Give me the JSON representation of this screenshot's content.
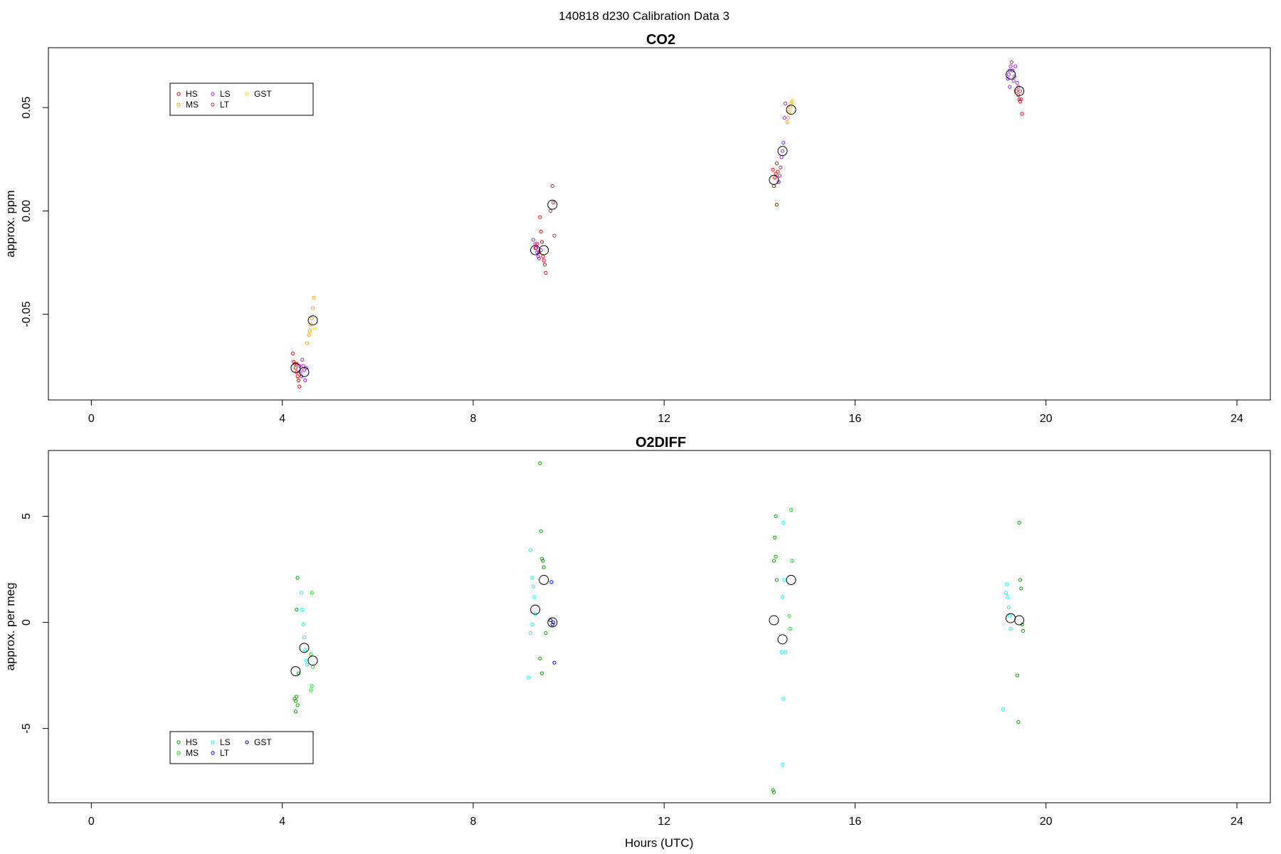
{
  "page_title": "140818   d230   Calibration Data 3",
  "chart_data": [
    {
      "type": "scatter",
      "title": "CO2",
      "xlabel": "",
      "ylabel": "approx. ppm",
      "xlim": [
        -0.9,
        24.7
      ],
      "ylim": [
        -0.0915,
        0.079
      ],
      "x_ticks": [
        0,
        4,
        8,
        12,
        16,
        20,
        24
      ],
      "y_ticks": [
        -0.05,
        0.0,
        0.05
      ],
      "y_tick_labels": [
        "-0.05",
        "0.00",
        "0.05"
      ],
      "legend": {
        "placement": "top-left",
        "entries": [
          {
            "label": "HS",
            "color": "#ff0000"
          },
          {
            "label": "MS",
            "color": "#ffa500"
          },
          {
            "label": "LS",
            "color": "#a020f0"
          },
          {
            "label": "LT",
            "color": "#b03060"
          },
          {
            "label": "GST",
            "color": "#ffd700"
          }
        ]
      },
      "series": [
        {
          "legend_index": 0,
          "points": [
            [
              4.22,
              -0.069
            ],
            [
              4.24,
              -0.073
            ],
            [
              4.26,
              -0.074
            ],
            [
              4.28,
              -0.076
            ],
            [
              4.3,
              -0.078
            ],
            [
              4.32,
              -0.08
            ],
            [
              4.34,
              -0.082
            ],
            [
              4.36,
              -0.085
            ],
            [
              4.3,
              -0.074
            ],
            [
              9.3,
              -0.018
            ],
            [
              9.34,
              -0.016
            ],
            [
              9.38,
              -0.02
            ],
            [
              9.4,
              -0.003
            ],
            [
              9.42,
              -0.01
            ],
            [
              9.44,
              -0.015
            ],
            [
              9.46,
              -0.022
            ],
            [
              9.48,
              -0.024
            ],
            [
              9.5,
              -0.026
            ],
            [
              9.52,
              -0.03
            ],
            [
              14.28,
              0.02
            ],
            [
              14.3,
              0.012
            ],
            [
              14.32,
              0.016
            ],
            [
              14.34,
              0.018
            ],
            [
              14.36,
              0.023
            ],
            [
              14.38,
              0.019
            ],
            [
              14.4,
              0.014
            ],
            [
              14.36,
              0.003
            ],
            [
              19.38,
              0.058
            ],
            [
              19.42,
              0.056
            ],
            [
              19.44,
              0.054
            ],
            [
              19.46,
              0.053
            ],
            [
              19.5,
              0.047
            ]
          ]
        },
        {
          "legend_index": 1,
          "points": [
            [
              4.52,
              -0.064
            ],
            [
              4.56,
              -0.06
            ],
            [
              4.58,
              -0.058
            ],
            [
              4.62,
              -0.052
            ],
            [
              4.64,
              -0.047
            ],
            [
              4.66,
              -0.042
            ],
            [
              4.6,
              -0.055
            ],
            [
              14.6,
              0.045
            ],
            [
              14.62,
              0.048
            ],
            [
              14.64,
              0.05
            ],
            [
              14.66,
              0.052
            ],
            [
              14.68,
              0.053
            ],
            [
              14.58,
              0.043
            ]
          ]
        },
        {
          "legend_index": 2,
          "points": [
            [
              4.36,
              -0.075
            ],
            [
              4.38,
              -0.078
            ],
            [
              4.4,
              -0.08
            ],
            [
              4.42,
              -0.072
            ],
            [
              4.44,
              -0.075
            ],
            [
              4.46,
              -0.077
            ],
            [
              4.48,
              -0.082
            ],
            [
              4.5,
              -0.076
            ],
            [
              9.26,
              -0.014
            ],
            [
              9.3,
              -0.016
            ],
            [
              9.32,
              -0.018
            ],
            [
              9.34,
              -0.02
            ],
            [
              9.36,
              -0.022
            ],
            [
              9.38,
              -0.023
            ],
            [
              9.42,
              -0.019
            ],
            [
              14.4,
              0.014
            ],
            [
              14.42,
              0.017
            ],
            [
              14.44,
              0.021
            ],
            [
              14.46,
              0.026
            ],
            [
              14.48,
              0.029
            ],
            [
              14.5,
              0.033
            ],
            [
              14.52,
              0.045
            ],
            [
              14.54,
              0.052
            ],
            [
              19.2,
              0.064
            ],
            [
              19.22,
              0.066
            ],
            [
              19.24,
              0.068
            ],
            [
              19.26,
              0.07
            ],
            [
              19.28,
              0.072
            ],
            [
              19.3,
              0.068
            ],
            [
              19.32,
              0.063
            ],
            [
              19.34,
              0.065
            ],
            [
              19.36,
              0.07
            ],
            [
              19.24,
              0.06
            ],
            [
              19.4,
              0.062
            ]
          ]
        },
        {
          "legend_index": 3,
          "points": [
            [
              9.62,
              0.0
            ],
            [
              9.66,
              0.012
            ],
            [
              9.7,
              -0.012
            ],
            [
              9.68,
              0.004
            ],
            [
              19.42,
              0.06
            ],
            [
              19.46,
              0.058
            ],
            [
              19.48,
              0.054
            ]
          ]
        },
        {
          "legend_index": 4,
          "points": [
            [
              4.68,
              -0.057
            ],
            [
              14.66,
              0.052
            ]
          ]
        },
        {
          "legend_index": -1,
          "marker": "mean",
          "points": [
            [
              4.28,
              -0.076
            ],
            [
              4.46,
              -0.078
            ],
            [
              4.64,
              -0.053
            ],
            [
              9.3,
              -0.019
            ],
            [
              9.48,
              -0.019
            ],
            [
              9.66,
              0.003
            ],
            [
              14.3,
              0.015
            ],
            [
              14.48,
              0.029
            ],
            [
              14.66,
              0.049
            ],
            [
              19.26,
              0.066
            ],
            [
              19.44,
              0.058
            ]
          ]
        }
      ]
    },
    {
      "type": "scatter",
      "title": "O2DIFF",
      "xlabel": "Hours (UTC)",
      "ylabel": "approx. per meg",
      "xlim": [
        -0.9,
        24.7
      ],
      "ylim": [
        -8.5,
        8.1
      ],
      "x_ticks": [
        0,
        4,
        8,
        12,
        16,
        20,
        24
      ],
      "y_ticks": [
        -5,
        0,
        5
      ],
      "y_tick_labels": [
        "-5",
        "0",
        "5"
      ],
      "legend": {
        "placement": "bottom-left",
        "entries": [
          {
            "label": "HS",
            "color": "#00a000"
          },
          {
            "label": "MS",
            "color": "#00ee00"
          },
          {
            "label": "LS",
            "color": "#00ffff"
          },
          {
            "label": "LT",
            "color": "#0000ff"
          },
          {
            "label": "GST",
            "color": "#00008b"
          }
        ]
      },
      "series": [
        {
          "legend_index": 0,
          "points": [
            [
              4.32,
              2.1
            ],
            [
              4.3,
              0.6
            ],
            [
              4.26,
              -3.6
            ],
            [
              4.28,
              -3.7
            ],
            [
              4.3,
              -3.5
            ],
            [
              4.32,
              -3.9
            ],
            [
              4.28,
              -4.2
            ],
            [
              4.34,
              -2.4
            ],
            [
              9.4,
              7.5
            ],
            [
              9.42,
              4.3
            ],
            [
              9.44,
              3.0
            ],
            [
              9.46,
              2.9
            ],
            [
              9.48,
              2.6
            ],
            [
              9.52,
              -0.5
            ],
            [
              9.4,
              -1.7
            ],
            [
              9.44,
              -2.4
            ],
            [
              14.34,
              5.0
            ],
            [
              14.32,
              4.0
            ],
            [
              14.34,
              3.1
            ],
            [
              14.3,
              2.9
            ],
            [
              14.36,
              2.0
            ],
            [
              14.28,
              -7.9
            ],
            [
              14.3,
              -8.0
            ],
            [
              19.44,
              4.7
            ],
            [
              19.46,
              2.0
            ],
            [
              19.48,
              1.6
            ],
            [
              19.5,
              -0.1
            ],
            [
              19.52,
              -0.4
            ],
            [
              19.4,
              -2.5
            ],
            [
              19.42,
              -4.7
            ]
          ]
        },
        {
          "legend_index": 1,
          "points": [
            [
              4.62,
              1.4
            ],
            [
              4.6,
              -1.5
            ],
            [
              4.64,
              -2.1
            ],
            [
              4.62,
              -3.0
            ],
            [
              4.6,
              -3.2
            ],
            [
              14.66,
              5.3
            ],
            [
              14.68,
              2.9
            ],
            [
              14.62,
              0.3
            ],
            [
              14.64,
              -0.3
            ]
          ]
        },
        {
          "legend_index": 2,
          "points": [
            [
              4.4,
              1.4
            ],
            [
              4.42,
              0.6
            ],
            [
              4.44,
              -0.1
            ],
            [
              4.46,
              -0.7
            ],
            [
              4.48,
              -1.3
            ],
            [
              4.5,
              -1.8
            ],
            [
              4.52,
              -2.0
            ],
            [
              9.2,
              3.4
            ],
            [
              9.24,
              2.1
            ],
            [
              9.26,
              1.7
            ],
            [
              9.28,
              1.2
            ],
            [
              9.3,
              0.4
            ],
            [
              9.2,
              -0.5
            ],
            [
              9.24,
              -0.1
            ],
            [
              9.16,
              -2.6
            ],
            [
              14.5,
              4.7
            ],
            [
              14.52,
              2.0
            ],
            [
              14.48,
              1.2
            ],
            [
              14.54,
              -1.4
            ],
            [
              14.46,
              -1.4
            ],
            [
              14.5,
              -3.6
            ],
            [
              14.48,
              -6.7
            ],
            [
              19.16,
              1.4
            ],
            [
              19.18,
              1.8
            ],
            [
              19.2,
              1.2
            ],
            [
              19.22,
              0.7
            ],
            [
              19.24,
              0.3
            ],
            [
              19.26,
              -0.3
            ],
            [
              19.1,
              -4.1
            ]
          ]
        },
        {
          "legend_index": 3,
          "points": [
            [
              9.64,
              1.9
            ],
            [
              9.62,
              0.1
            ],
            [
              9.66,
              -0.1
            ],
            [
              9.7,
              -1.9
            ]
          ]
        },
        {
          "legend_index": 4,
          "points": [
            [
              9.68,
              0.0
            ]
          ]
        },
        {
          "legend_index": -1,
          "marker": "mean",
          "points": [
            [
              4.28,
              -2.3
            ],
            [
              4.46,
              -1.2
            ],
            [
              4.64,
              -1.8
            ],
            [
              9.3,
              0.6
            ],
            [
              9.48,
              2.0
            ],
            [
              9.66,
              0.0
            ],
            [
              14.3,
              0.1
            ],
            [
              14.48,
              -0.8
            ],
            [
              14.66,
              2.0
            ],
            [
              19.26,
              0.2
            ],
            [
              19.44,
              0.1
            ]
          ]
        }
      ]
    }
  ]
}
